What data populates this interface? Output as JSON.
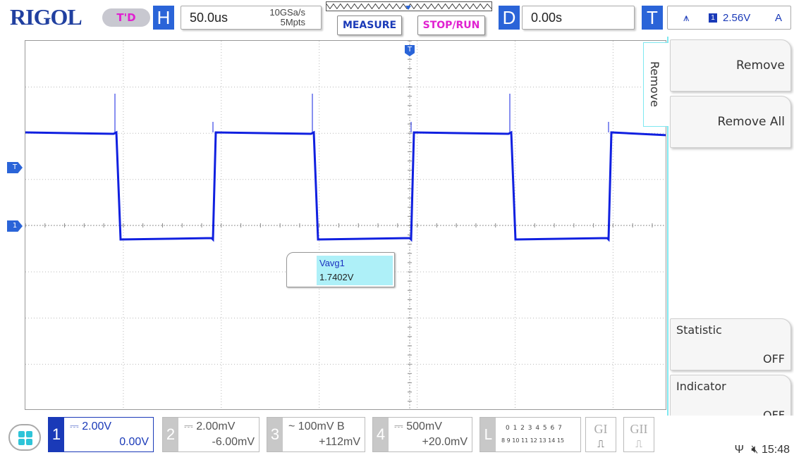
{
  "brand": "RIGOL",
  "mode_badge": "T'D",
  "horizontal": {
    "letter": "H",
    "timebase": "50.0us",
    "sample_rate": "10GSa/s",
    "memory_depth": "5Mpts"
  },
  "buttons": {
    "measure": "MEASURE",
    "stop_run": "STOP/RUN"
  },
  "delay": {
    "letter": "D",
    "value": "0.00s"
  },
  "trigger": {
    "letter": "T",
    "channel": "1",
    "level": "2.56V",
    "mode": "A"
  },
  "markers": {
    "trigger_level": "T",
    "channel1": "1"
  },
  "side_tab": "Remove",
  "menu": {
    "remove": "Remove",
    "remove_all": "Remove All",
    "statistic_label": "Statistic",
    "statistic_value": "OFF",
    "indicator_label": "Indicator",
    "indicator_value": "OFF"
  },
  "measurement": {
    "name": "Vavg1",
    "value": "1.7402V"
  },
  "channels": [
    {
      "num": "1",
      "scale": "2.00V",
      "offset": "0.00V",
      "coupling": "DC",
      "active": true
    },
    {
      "num": "2",
      "scale": "2.00mV",
      "offset": "-6.00mV",
      "coupling": "DC",
      "active": false
    },
    {
      "num": "3",
      "scale": "100mV",
      "bw": "B",
      "offset": "+112mV",
      "coupling": "AC",
      "active": false
    },
    {
      "num": "4",
      "scale": "500mV",
      "offset": "+20.0mV",
      "coupling": "DC",
      "active": false
    }
  ],
  "la": {
    "letter": "L",
    "row1": "0 1 2 3  4 5 6 7",
    "row2": "8 9 10 11 12 13 14 15"
  },
  "gen": {
    "g1": "GI",
    "g2": "GII"
  },
  "clock": "15:48",
  "colors": {
    "trace": "#1020e0",
    "accent": "#2a64d8",
    "magenta": "#e020d0",
    "cyan": "#7ee8f0"
  }
}
